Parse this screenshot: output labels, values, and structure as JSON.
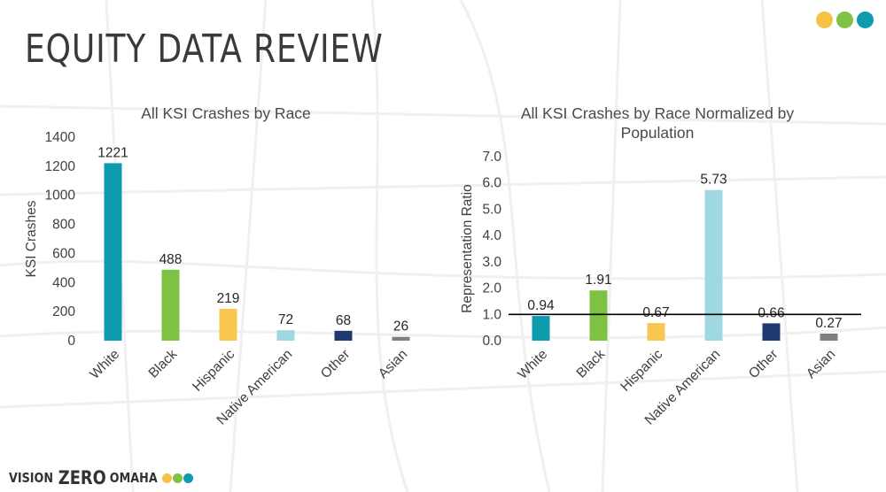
{
  "slide": {
    "title": "EQUITY DATA REVIEW",
    "logo": {
      "word1": "VISION",
      "word2": "ZERO",
      "word3": "OMAHA"
    },
    "dot_colors": [
      "#F5C242",
      "#7DC242",
      "#0E9BAE"
    ]
  },
  "chart_data": [
    {
      "type": "bar",
      "title": "All KSI Crashes by Race",
      "xlabel": "",
      "ylabel": "KSI Crashes",
      "categories": [
        "White",
        "Black",
        "Hispanic",
        "Native American",
        "Other",
        "Asian"
      ],
      "values": [
        1221,
        488,
        219,
        72,
        68,
        26
      ],
      "value_labels": [
        "1221",
        "488",
        "219",
        "72",
        "68",
        "26"
      ],
      "colors": [
        "#0E9BAE",
        "#7DC242",
        "#F9C74F",
        "#9FD8E0",
        "#1F3A6E",
        "#7F7F7F"
      ],
      "ylim": [
        0,
        1400
      ],
      "yticks": [
        "0",
        "200",
        "400",
        "600",
        "800",
        "1000",
        "1200",
        "1400"
      ],
      "grid": false
    },
    {
      "type": "bar",
      "title": "All KSI Crashes by Race Normalized by Population",
      "title_lines": [
        "All KSI Crashes by Race Normalized by",
        "Population"
      ],
      "xlabel": "",
      "ylabel": "Representation Ratio",
      "categories": [
        "White",
        "Black",
        "Hispanic",
        "Native American",
        "Other",
        "Asian"
      ],
      "values": [
        0.94,
        1.91,
        0.67,
        5.73,
        0.66,
        0.27
      ],
      "value_labels": [
        "0.94",
        "1.91",
        "0.67",
        "5.73",
        "0.66",
        "0.27"
      ],
      "colors": [
        "#0E9BAE",
        "#7DC242",
        "#F9C74F",
        "#9FD8E0",
        "#1F3A6E",
        "#7F7F7F"
      ],
      "ylim": [
        0,
        7
      ],
      "yticks": [
        "0.0",
        "1.0",
        "2.0",
        "3.0",
        "4.0",
        "5.0",
        "6.0",
        "7.0"
      ],
      "reference_line": 1.0,
      "grid": false
    }
  ]
}
